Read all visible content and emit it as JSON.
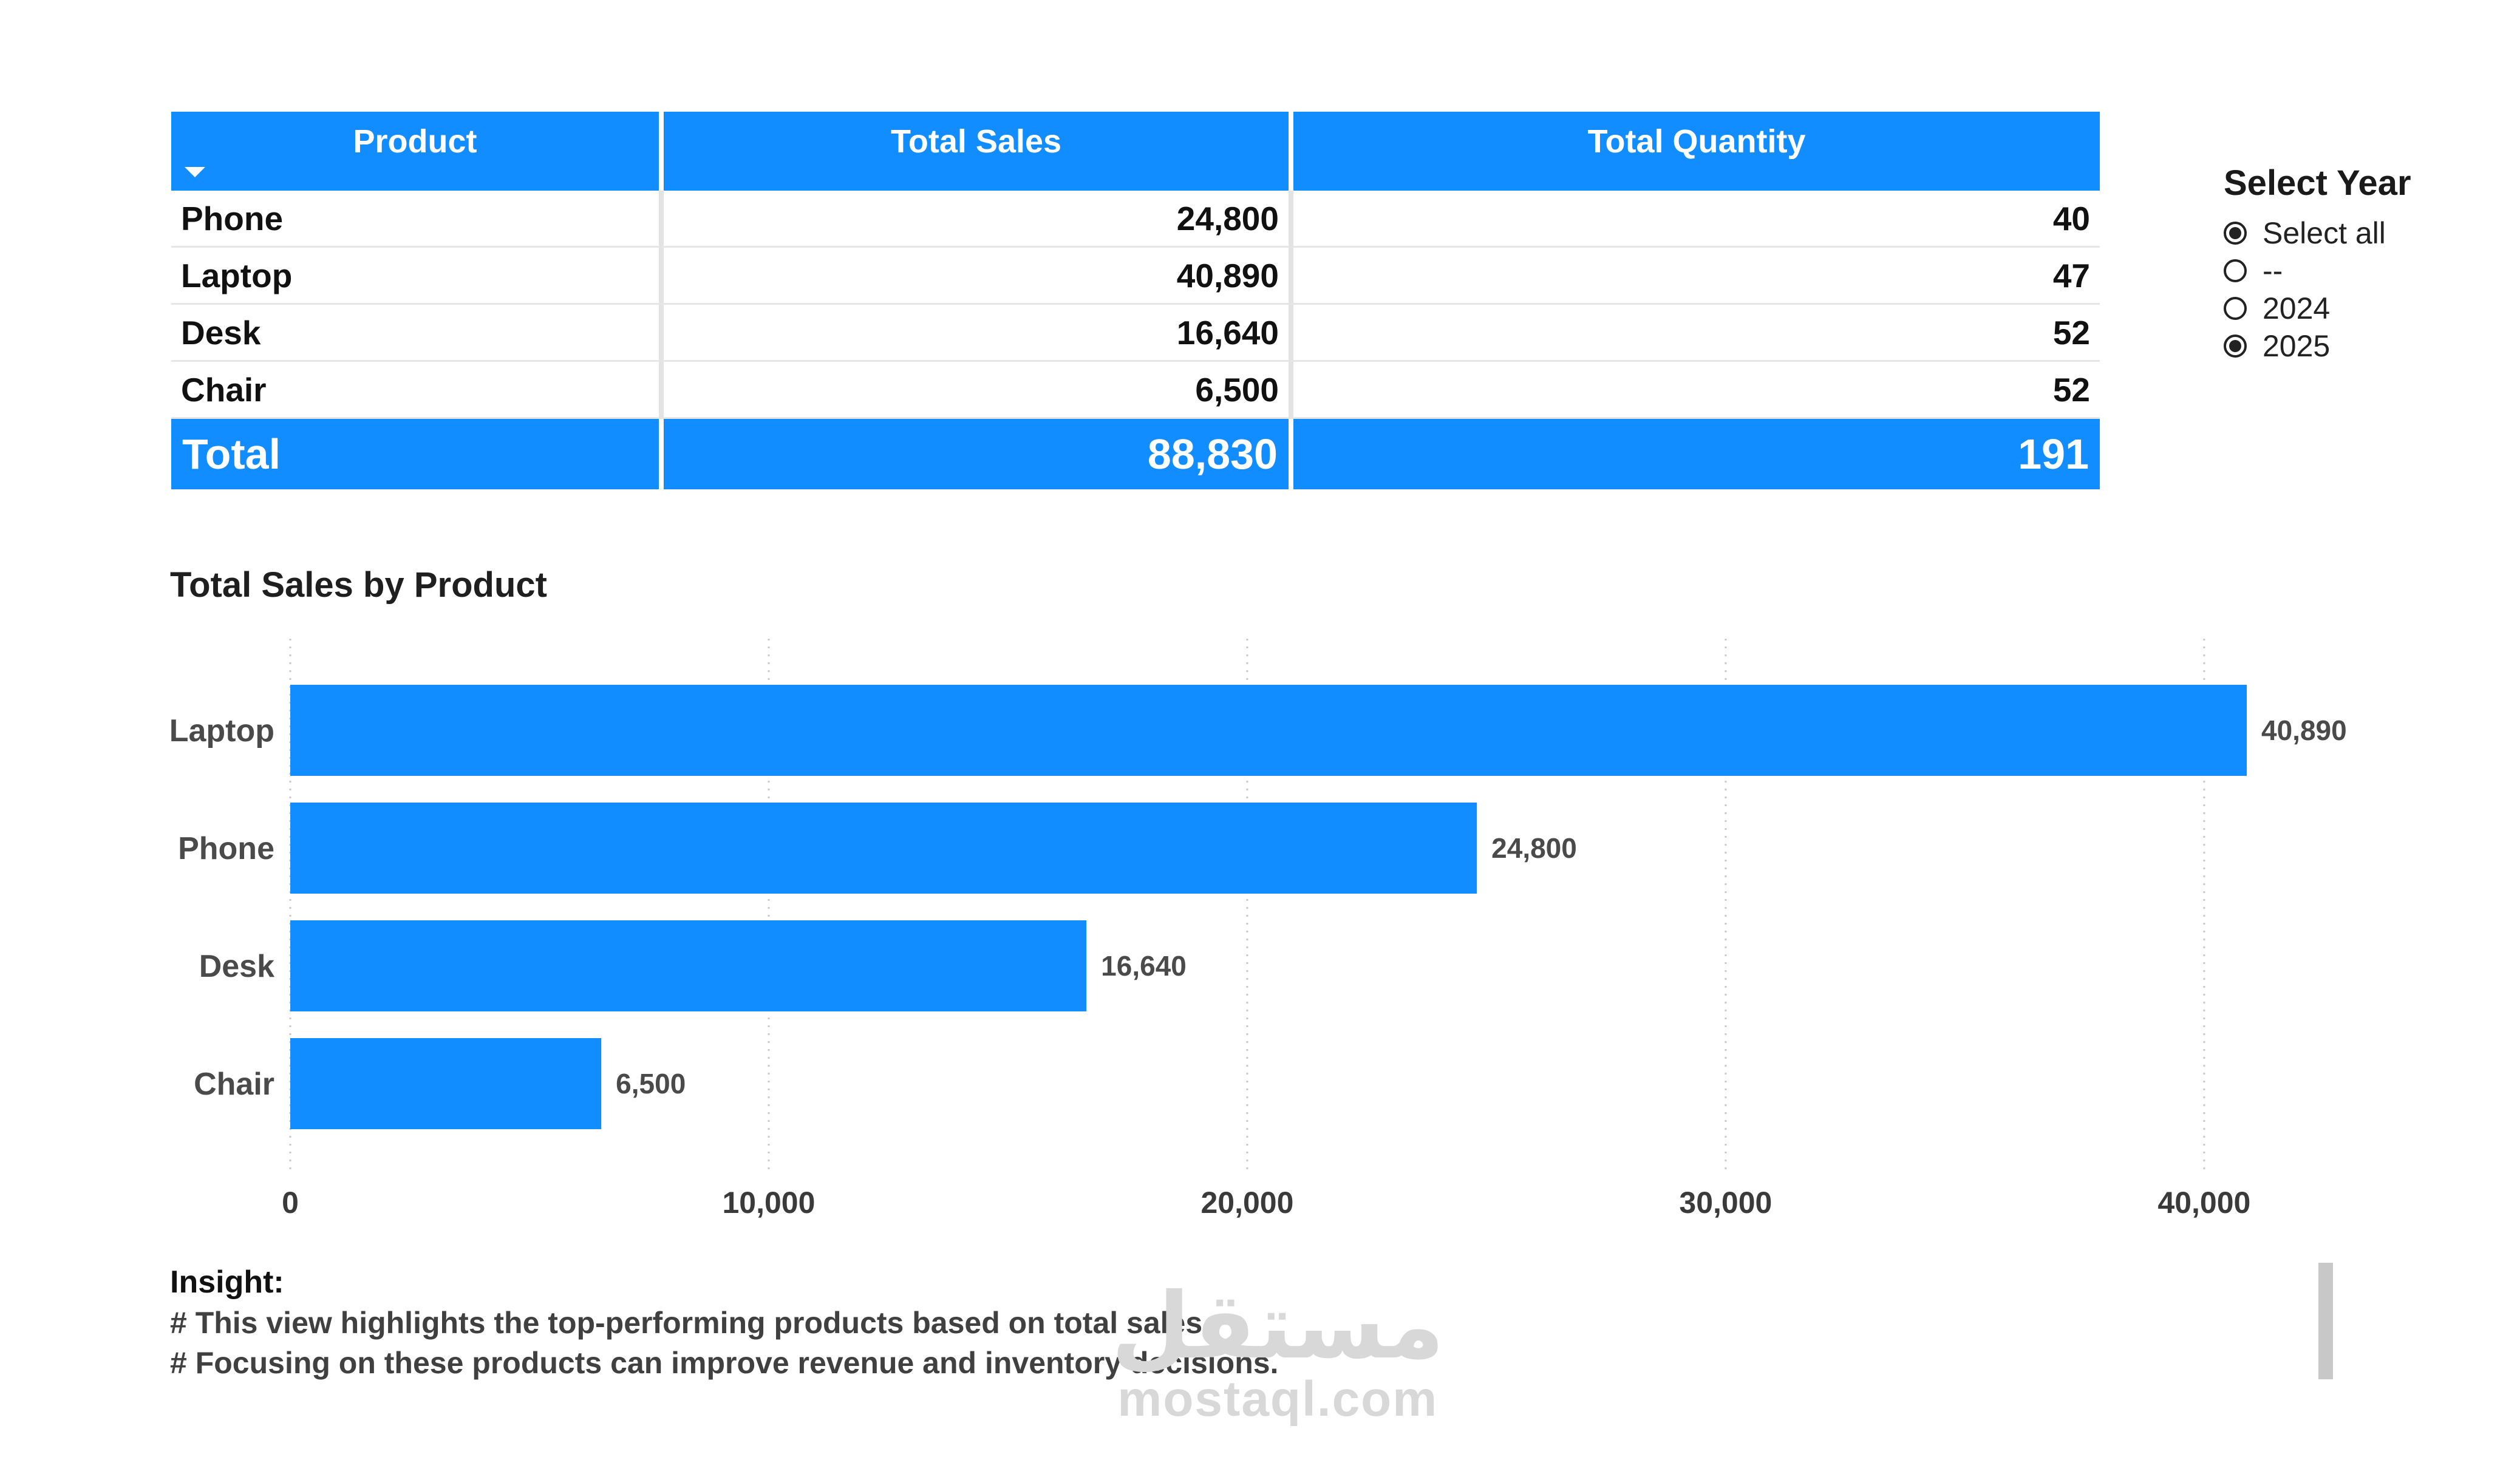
{
  "table": {
    "columns": [
      "Product",
      "Total Sales",
      "Total Quantity"
    ],
    "rows": [
      {
        "product": "Phone",
        "total_sales": "24,800",
        "total_quantity": "40"
      },
      {
        "product": "Laptop",
        "total_sales": "40,890",
        "total_quantity": "47"
      },
      {
        "product": "Desk",
        "total_sales": "16,640",
        "total_quantity": "52"
      },
      {
        "product": "Chair",
        "total_sales": "6,500",
        "total_quantity": "52"
      }
    ],
    "total": {
      "label": "Total",
      "total_sales": "88,830",
      "total_quantity": "191"
    },
    "header_color": "#118dff",
    "sort_icon": "sort-descending-icon"
  },
  "slicer": {
    "title": "Select Year",
    "options": [
      {
        "label": "Select all",
        "selected": true
      },
      {
        "label": "--",
        "selected": false
      },
      {
        "label": "2024",
        "selected": false
      },
      {
        "label": "2025",
        "selected": true
      }
    ]
  },
  "chart_data": {
    "type": "bar",
    "orientation": "horizontal",
    "title": "Total Sales by Product",
    "categories": [
      "Laptop",
      "Phone",
      "Desk",
      "Chair"
    ],
    "values": [
      40890,
      24800,
      16640,
      6500
    ],
    "data_labels": [
      "40,890",
      "24,800",
      "16,640",
      "6,500"
    ],
    "x_ticks": [
      0,
      10000,
      20000,
      30000,
      40000
    ],
    "x_tick_labels": [
      "0",
      "10,000",
      "20,000",
      "30,000",
      "40,000"
    ],
    "xlim": [
      0,
      40890
    ],
    "grid": true,
    "bar_color": "#118dff",
    "xlabel": "",
    "ylabel": ""
  },
  "insight": {
    "title": "Insight:",
    "lines": [
      "# This view highlights the top-performing products based on total sales.",
      "# Focusing on these products can improve revenue and inventory decisions."
    ]
  },
  "watermark": {
    "arabic": "مستقل",
    "latin": "mostaql.com"
  }
}
